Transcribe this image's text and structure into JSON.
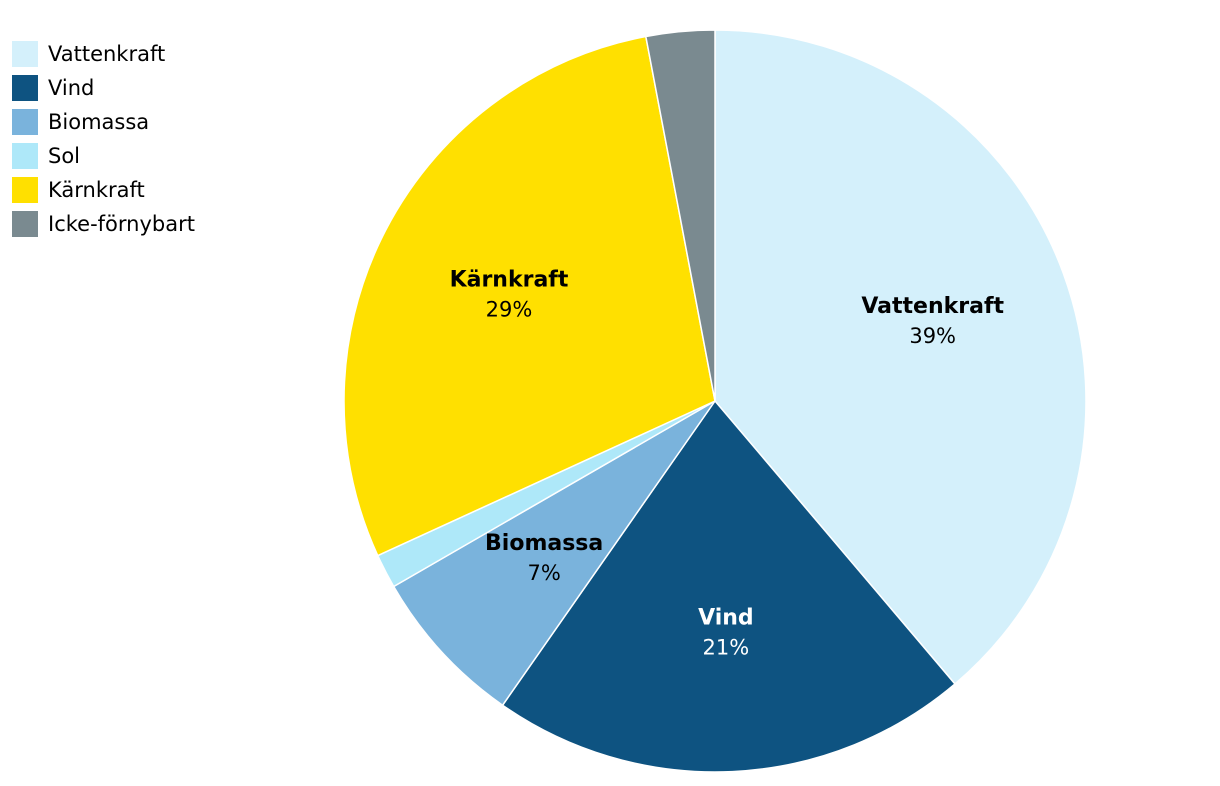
{
  "chart_data": {
    "type": "pie",
    "categories": [
      "Vattenkraft",
      "Vind",
      "Biomassa",
      "Sol",
      "Kärnkraft",
      "Icke-förnybart"
    ],
    "values": [
      39,
      21,
      7,
      1.5,
      29,
      3
    ],
    "value_labels": [
      "39%",
      "21%",
      "7%",
      null,
      "29%",
      null
    ],
    "colors": [
      "#d4f0fb",
      "#0e5381",
      "#7ab3dc",
      "#aee8f9",
      "#ffe000",
      "#7a8a90"
    ],
    "label_colors": [
      "#000000",
      "#ffffff",
      "#000000",
      null,
      "#000000",
      null
    ],
    "legend": "top-left"
  }
}
